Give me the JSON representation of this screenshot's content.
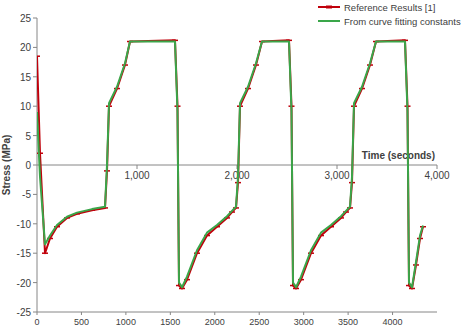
{
  "chart_data": {
    "type": "line",
    "x_label": "Time (seconds)",
    "y_label": "Stress (MPa)",
    "x": [
      0,
      30,
      80,
      130,
      200,
      300,
      400,
      550,
      680,
      700,
      720,
      800,
      880,
      930,
      1380,
      1405,
      1420,
      1450,
      1500,
      1600,
      1700,
      1800,
      1900,
      1950,
      1990,
      2010,
      2030,
      2110,
      2190,
      2250,
      2520,
      2545,
      2560,
      2590,
      2640,
      2740,
      2840,
      2940,
      3040,
      3090,
      3130,
      3150,
      3170,
      3250,
      3330,
      3390,
      3680,
      3705,
      3720,
      3750,
      3790,
      3830,
      3860
    ],
    "xlim": [
      0,
      4000
    ],
    "xticks": [
      {
        "value": 1000,
        "label": "1,000"
      },
      {
        "value": 2000,
        "label": "2,000"
      },
      {
        "value": 3000,
        "label": "3,000"
      },
      {
        "value": 4000,
        "label": "4,000"
      }
    ],
    "x2lim": [
      0,
      4500
    ],
    "x2ticks": [
      0,
      500,
      1000,
      1500,
      2000,
      2500,
      3000,
      3500,
      4000
    ],
    "ylim": [
      -25,
      25
    ],
    "yticks": [
      -25,
      -20,
      -15,
      -10,
      -5,
      0,
      5,
      10,
      15,
      20,
      25
    ],
    "grid": false,
    "legend": "top-right",
    "series": [
      {
        "name": "Reference Results [1]",
        "color": "#c0000b",
        "marker": "dash",
        "values": [
          18.5,
          2,
          -15,
          -12.5,
          -10.5,
          -9,
          -8.3,
          -7.7,
          -7.3,
          -1,
          10,
          13,
          17,
          21,
          21.2,
          10,
          -20.5,
          -21,
          -19.5,
          -15,
          -12,
          -10.5,
          -9,
          -8,
          -7.3,
          -3,
          10,
          13,
          17,
          21,
          21.2,
          10,
          -20.5,
          -21,
          -19.5,
          -15,
          -12,
          -10.5,
          -9,
          -8,
          -7.3,
          -3,
          10,
          13,
          17,
          21,
          21.2,
          10,
          -20.5,
          -21,
          -17,
          -12.5,
          -10.5
        ]
      },
      {
        "name": "From curve fitting constants",
        "color": "#3aa64a",
        "marker": "none",
        "values": [
          9,
          -2,
          -13.5,
          -12,
          -10.2,
          -8.8,
          -8.1,
          -7.5,
          -7.1,
          0,
          10.5,
          13.3,
          17.3,
          21,
          21,
          9,
          -20,
          -20.8,
          -19,
          -14.5,
          -11.5,
          -10.2,
          -8.7,
          -7.8,
          -7.1,
          -2,
          10.5,
          13.3,
          17.3,
          21,
          21,
          9,
          -20,
          -20.8,
          -19,
          -14.5,
          -11.5,
          -10.2,
          -8.7,
          -7.8,
          -7.1,
          -2,
          10.5,
          13.3,
          17.3,
          21,
          21,
          9,
          -20,
          -20.8,
          -16.5,
          -12,
          -10.3
        ]
      }
    ]
  }
}
